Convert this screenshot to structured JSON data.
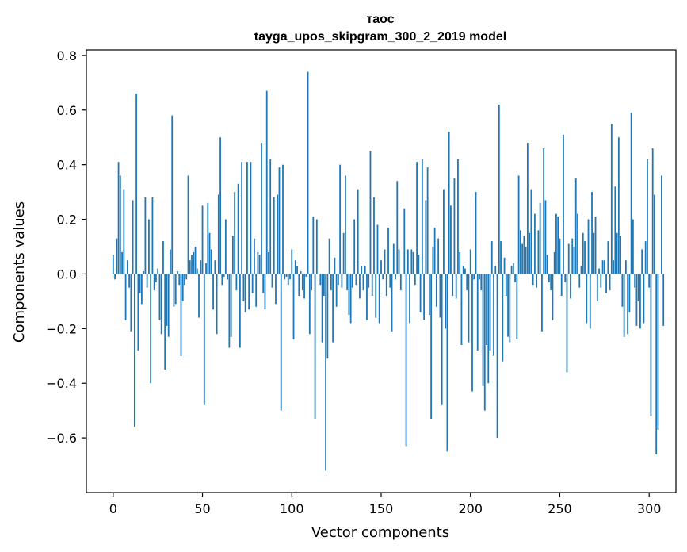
{
  "chart_data": {
    "type": "bar",
    "title_line1": "таос",
    "title_line2": "tayga_upos_skipgram_300_2_2019 model",
    "xlabel": "Vector components",
    "ylabel": "Components values",
    "xlim": [
      -15,
      315
    ],
    "ylim": [
      -0.8,
      0.82
    ],
    "xticks": [
      0,
      50,
      100,
      150,
      200,
      250,
      300
    ],
    "xtick_labels": [
      "0",
      "50",
      "100",
      "150",
      "200",
      "250",
      "300"
    ],
    "yticks": [
      -0.6,
      -0.4,
      -0.2,
      0.0,
      0.2,
      0.4,
      0.6,
      0.8
    ],
    "ytick_labels": [
      "−0.6",
      "−0.4",
      "−0.2",
      "0.0",
      "0.2",
      "0.4",
      "0.6",
      "0.8"
    ],
    "grid": false,
    "bar_color": "#1f77b4",
    "values": [
      0.07,
      -0.02,
      0.13,
      0.41,
      0.36,
      0.08,
      0.31,
      -0.17,
      0.05,
      -0.05,
      -0.21,
      0.27,
      -0.56,
      0.66,
      -0.28,
      -0.07,
      -0.11,
      0.01,
      0.28,
      -0.05,
      0.2,
      -0.4,
      0.28,
      -0.06,
      -0.03,
      0.02,
      -0.17,
      -0.22,
      0.12,
      -0.35,
      -0.19,
      -0.23,
      0.09,
      0.58,
      -0.12,
      -0.11,
      0.01,
      -0.04,
      -0.3,
      -0.1,
      -0.04,
      -0.02,
      0.36,
      0.05,
      0.07,
      0.08,
      0.1,
      0.02,
      -0.16,
      0.05,
      0.25,
      -0.48,
      0.04,
      0.26,
      0.15,
      0.09,
      -0.13,
      0.05,
      -0.22,
      0.29,
      0.5,
      -0.04,
      -0.01,
      0.2,
      -0.02,
      -0.27,
      -0.23,
      0.14,
      0.3,
      -0.06,
      0.33,
      -0.27,
      0.41,
      -0.1,
      -0.14,
      0.41,
      -0.13,
      0.41,
      -0.07,
      0.13,
      -0.12,
      0.08,
      0.07,
      0.48,
      -0.07,
      -0.13,
      0.67,
      0.08,
      0.42,
      -0.05,
      0.28,
      -0.11,
      0.29,
      0.39,
      -0.5,
      0.4,
      -0.02,
      -0.01,
      -0.04,
      -0.02,
      0.09,
      -0.24,
      0.05,
      0.03,
      -0.08,
      0.01,
      -0.06,
      -0.09,
      -0.01,
      0.74,
      -0.22,
      -0.06,
      0.21,
      -0.53,
      0.2,
      0.0,
      -0.04,
      -0.25,
      -0.08,
      -0.72,
      -0.31,
      0.13,
      -0.06,
      -0.25,
      0.06,
      -0.12,
      -0.04,
      0.4,
      -0.05,
      0.15,
      0.36,
      -0.06,
      -0.15,
      -0.18,
      -0.05,
      0.2,
      -0.04,
      0.31,
      -0.09,
      0.03,
      -0.06,
      0.03,
      -0.17,
      -0.05,
      0.45,
      -0.08,
      0.28,
      -0.16,
      0.18,
      -0.18,
      0.05,
      -0.02,
      0.09,
      -0.08,
      0.17,
      -0.05,
      -0.21,
      0.11,
      -0.02,
      0.34,
      0.09,
      -0.06,
      0.0,
      0.24,
      -0.63,
      0.09,
      -0.18,
      0.09,
      0.08,
      -0.04,
      0.41,
      0.07,
      -0.14,
      0.42,
      -0.17,
      0.27,
      0.39,
      -0.15,
      -0.53,
      0.1,
      0.17,
      -0.12,
      0.13,
      -0.16,
      -0.48,
      0.31,
      -0.2,
      -0.65,
      0.52,
      0.25,
      -0.08,
      0.35,
      -0.09,
      0.42,
      0.08,
      -0.26,
      0.03,
      0.02,
      -0.06,
      -0.25,
      0.09,
      -0.43,
      -0.02,
      0.3,
      -0.28,
      -0.02,
      -0.06,
      -0.41,
      -0.5,
      -0.26,
      -0.4,
      -0.28,
      0.12,
      -0.3,
      0.03,
      -0.6,
      0.62,
      0.12,
      -0.32,
      0.06,
      -0.08,
      -0.23,
      -0.25,
      0.03,
      0.04,
      -0.03,
      -0.24,
      0.36,
      0.16,
      0.11,
      0.14,
      0.1,
      0.48,
      0.15,
      0.31,
      -0.04,
      0.22,
      -0.05,
      0.16,
      0.26,
      -0.21,
      0.46,
      0.27,
      0.07,
      -0.03,
      -0.06,
      -0.17,
      0.08,
      0.22,
      0.21,
      0.13,
      -0.08,
      0.51,
      -0.03,
      -0.36,
      0.11,
      -0.09,
      0.13,
      0.1,
      0.35,
      0.22,
      -0.05,
      0.03,
      0.15,
      0.12,
      -0.18,
      0.2,
      -0.2,
      0.3,
      0.15,
      0.21,
      -0.1,
      0.02,
      -0.05,
      0.05,
      0.05,
      -0.07,
      0.12,
      -0.06,
      0.55,
      0.05,
      0.32,
      0.15,
      0.5,
      0.14,
      -0.12,
      -0.23,
      0.05,
      -0.22,
      -0.14,
      0.59,
      0.2,
      -0.05,
      -0.19,
      -0.1,
      -0.2,
      0.09,
      -0.18,
      0.12,
      0.42,
      -0.05,
      -0.52,
      0.46,
      0.29,
      -0.66,
      -0.57,
      0.0,
      0.36,
      -0.19
    ]
  }
}
